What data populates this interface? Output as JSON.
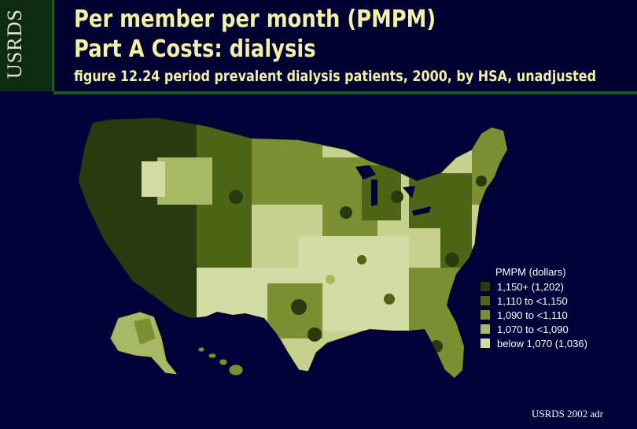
{
  "header": {
    "logo": "USRDS",
    "title_line1": "Per member per month (PMPM)",
    "title_line2": "Part A Costs: dialysis",
    "subtitle": "figure 12.24 period prevalent dialysis patients, 2000, by HSA, unadjusted"
  },
  "legend": {
    "title": "PMPM (dollars)",
    "items": [
      {
        "label": "1,150+ (1,202)",
        "color": "#2a3a10"
      },
      {
        "label": "1,110 to <1,150",
        "color": "#4e6416"
      },
      {
        "label": "1,090 to <1,110",
        "color": "#7c8f32"
      },
      {
        "label": "1,070 to <1,090",
        "color": "#a9b864"
      },
      {
        "label": "below 1,070 (1,036)",
        "color": "#d3dca2"
      }
    ]
  },
  "footer": "USRDS 2002 adr",
  "colors": {
    "background": "#01013a",
    "header_bg": "#000033",
    "accent_green": "#1d5a22",
    "title_text": "#f4f1a6"
  }
}
